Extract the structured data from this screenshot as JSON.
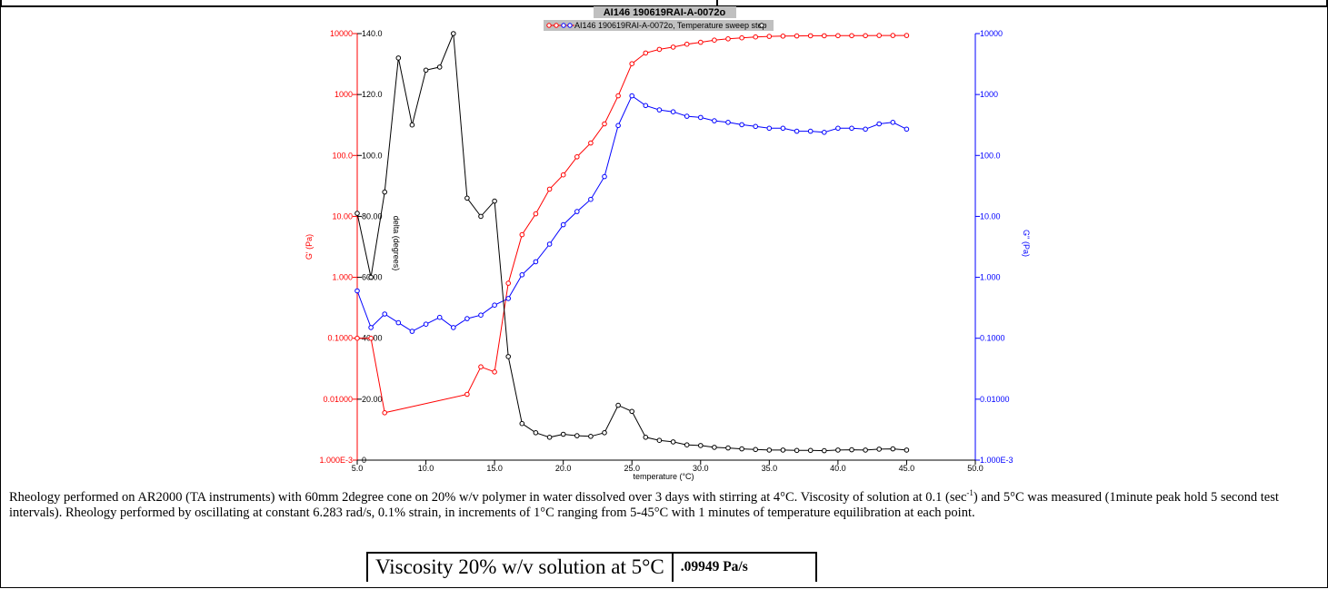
{
  "chart_data": {
    "type": "line",
    "title": "AI146 190619RAI-A-0072o",
    "legend": {
      "label": "AI146 190619RAI-A-0072o, Temperature sweep step",
      "placement": "top-center"
    },
    "xlabel": "temperature (°C)",
    "xlim": [
      5.0,
      50.0
    ],
    "x_ticks": [
      "5.0",
      "10.0",
      "15.0",
      "20.0",
      "25.0",
      "30.0",
      "35.0",
      "40.0",
      "45.0",
      "50.0"
    ],
    "axes": {
      "left_log": {
        "label": "G' (Pa)",
        "color": "#ff0000",
        "scale": "log",
        "range": [
          0.001,
          10000
        ],
        "ticks": [
          "1.000E-3",
          "0.01000",
          "0.1000",
          "1.000",
          "10.00",
          "100.0",
          "1000",
          "10000"
        ]
      },
      "delta": {
        "label": "delta (degrees)",
        "color": "#000000",
        "scale": "linear",
        "range": [
          0,
          140
        ],
        "ticks": [
          "0",
          "20.00",
          "40.00",
          "60.00",
          "80.00",
          "100.0",
          "120.0",
          "140.0"
        ]
      },
      "right_log": {
        "label": "G'' (Pa)",
        "color": "#0000ff",
        "scale": "log",
        "range": [
          0.001,
          10000
        ],
        "ticks": [
          "1.000E-3",
          "0.01000",
          "0.1000",
          "1.000",
          "10.00",
          "100.0",
          "1000",
          "10000"
        ]
      }
    },
    "series": [
      {
        "axis": "left_log",
        "color": "#ff0000",
        "x": [
          5,
          6,
          7,
          13,
          14,
          15,
          16,
          17,
          18,
          19,
          20,
          21,
          22,
          23,
          24,
          25,
          26,
          27,
          28,
          29,
          30,
          31,
          32,
          33,
          34,
          35,
          36,
          37,
          38,
          39,
          40,
          41,
          42,
          43,
          44,
          45
        ],
        "y": [
          0.1,
          0.1,
          0.006,
          0.012,
          0.034,
          0.028,
          0.8,
          5.0,
          11,
          28,
          48,
          95,
          160,
          330,
          950,
          3200,
          4800,
          5500,
          6000,
          6700,
          7200,
          7800,
          8200,
          8500,
          8800,
          9000,
          9100,
          9150,
          9200,
          9200,
          9250,
          9250,
          9250,
          9300,
          9300,
          9300
        ]
      },
      {
        "axis": "right_log",
        "color": "#0000ff",
        "x": [
          5,
          6,
          7,
          8,
          9,
          10,
          11,
          12,
          13,
          14,
          15,
          16,
          17,
          18,
          19,
          20,
          21,
          22,
          23,
          24,
          25,
          26,
          27,
          28,
          29,
          30,
          31,
          32,
          33,
          34,
          35,
          36,
          37,
          38,
          39,
          40,
          41,
          42,
          43,
          44,
          45
        ],
        "y": [
          0.6,
          0.15,
          0.25,
          0.18,
          0.13,
          0.17,
          0.22,
          0.15,
          0.21,
          0.24,
          0.35,
          0.45,
          1.1,
          1.8,
          3.5,
          7.3,
          12,
          19,
          45,
          310,
          950,
          660,
          560,
          520,
          440,
          420,
          370,
          350,
          320,
          300,
          280,
          280,
          250,
          250,
          240,
          280,
          280,
          270,
          330,
          350,
          270
        ]
      },
      {
        "axis": "delta",
        "color": "#000000",
        "x": [
          5,
          6,
          7,
          8,
          9,
          10,
          11,
          12,
          13,
          14,
          15,
          16,
          17,
          18,
          19,
          20,
          21,
          22,
          23,
          24,
          25,
          26,
          27,
          28,
          29,
          30,
          31,
          32,
          33,
          34,
          35,
          36,
          37,
          38,
          39,
          40,
          41,
          42,
          43,
          44,
          45
        ],
        "y": [
          81,
          60,
          88,
          132,
          110,
          128,
          129,
          140,
          86,
          80,
          85,
          34,
          12,
          9,
          7.5,
          8.5,
          8,
          7.8,
          9,
          18,
          16,
          7.5,
          6.5,
          6,
          5,
          4.8,
          4.2,
          4,
          3.7,
          3.5,
          3.3,
          3.3,
          3.2,
          3.2,
          3.1,
          3.3,
          3.4,
          3.3,
          3.6,
          3.7,
          3.3
        ]
      }
    ]
  },
  "caption": {
    "part1": "Rheology  performed on AR2000 (TA instruments) with 60mm 2degree cone on 20% w/v polymer in water dissolved over 3 days with stirring at 4°C. Viscosity of solution at 0.1 (sec",
    "sup": "-1",
    "part2": ") and 5°C was measured (1minute peak hold 5 second test intervals). Rheology performed by oscillating at constant 6.283 rad/s, 0.1% strain, in increments of 1°C ranging from 5-45°C with 1 minutes of temperature equilibration at each point."
  },
  "viscosity_table": {
    "label": "Viscosity 20% w/v solution at 5°C",
    "value": ".09949 Pa/s"
  }
}
